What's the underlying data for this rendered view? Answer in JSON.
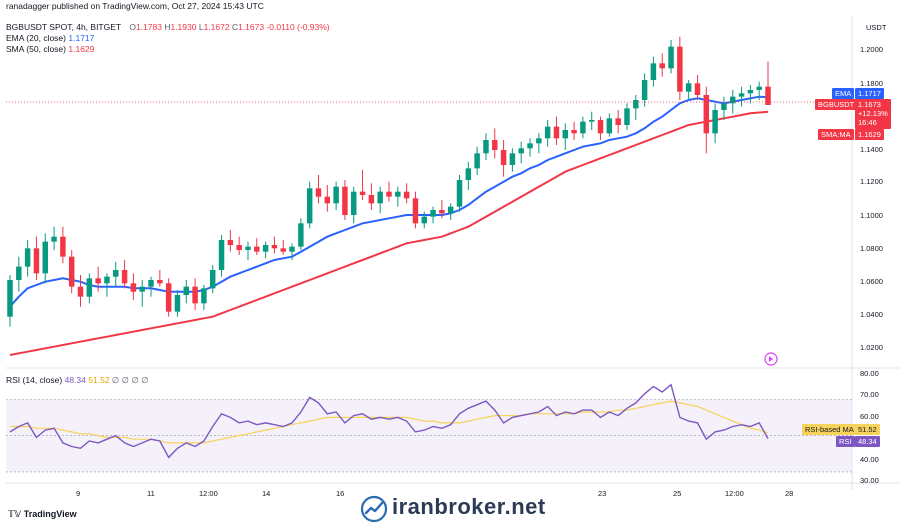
{
  "header": {
    "published_by": "ranadagger published on TradingView.com, Oct 27, 2024 15:43 UTC",
    "symbol": "BGBUSDT SPOT, 4h, BITGET",
    "ohlc": {
      "o_label": "O",
      "o": "1.1783",
      "h_label": "H",
      "h": "1.1930",
      "l_label": "L",
      "l": "1.1672",
      "c_label": "C",
      "c": "1.1673",
      "change": "-0.0110 (-0.93%)"
    },
    "ema_label": "EMA (20, close)",
    "ema_value": "1.1717",
    "sma_label": "SMA (50, close)",
    "sma_value": "1.1629"
  },
  "price_scale": {
    "currency": "USDT",
    "ticks": [
      "1.2000",
      "1.1800",
      "1.1400",
      "1.1200",
      "1.1000",
      "1.0800",
      "1.0600",
      "1.0400",
      "1.0200"
    ],
    "tag_ema": {
      "name": "EMA",
      "value": "1.1717"
    },
    "tag_price": {
      "name": "BGBUSDT",
      "value": "1.1673",
      "extra1": "+12.13%",
      "extra2": "16:46"
    },
    "tag_sma": {
      "name": "SMA:MA",
      "value": "1.1629"
    }
  },
  "rsi_panel": {
    "label": "RSI (14, close)",
    "rsi_value": "48.34",
    "ma_value": "51.52",
    "zeros": "∅ ∅ ∅ ∅",
    "ticks": [
      "80.00",
      "70.00",
      "60.00",
      "50.00",
      "40.00",
      "30.00"
    ],
    "tag_ma": {
      "name": "RSI-based MA",
      "value": "51.52"
    },
    "tag_rsi": {
      "name": "RSI",
      "value": "48.34"
    }
  },
  "time_axis": [
    "9",
    "11",
    "12:00",
    "14",
    "16",
    "23",
    "25",
    "12:00",
    "28"
  ],
  "footer": {
    "logo": "TradingView",
    "brand": "iranbroker.net"
  },
  "colors": {
    "up": "#089981",
    "down": "#f23645",
    "ema": "#2962ff",
    "sma": "#f23645",
    "rsi": "#7e57c2",
    "rsi_ma": "#f7d35b",
    "band": "#ede7f6"
  },
  "chart_data": {
    "type": "candlestick",
    "symbol": "BGBUSDT",
    "interval": "4h",
    "y_range": [
      1.01,
      1.21
    ],
    "candles": [
      [
        1.04,
        1.065,
        1.034,
        1.062
      ],
      [
        1.062,
        1.076,
        1.055,
        1.07
      ],
      [
        1.07,
        1.086,
        1.064,
        1.081
      ],
      [
        1.081,
        1.088,
        1.062,
        1.066
      ],
      [
        1.066,
        1.09,
        1.06,
        1.085
      ],
      [
        1.085,
        1.094,
        1.08,
        1.088
      ],
      [
        1.088,
        1.094,
        1.072,
        1.076
      ],
      [
        1.076,
        1.08,
        1.054,
        1.058
      ],
      [
        1.058,
        1.065,
        1.046,
        1.052
      ],
      [
        1.052,
        1.066,
        1.048,
        1.063
      ],
      [
        1.063,
        1.07,
        1.055,
        1.06
      ],
      [
        1.06,
        1.066,
        1.052,
        1.064
      ],
      [
        1.064,
        1.073,
        1.058,
        1.068
      ],
      [
        1.068,
        1.074,
        1.057,
        1.06
      ],
      [
        1.06,
        1.066,
        1.05,
        1.055
      ],
      [
        1.055,
        1.062,
        1.046,
        1.058
      ],
      [
        1.058,
        1.064,
        1.052,
        1.062
      ],
      [
        1.062,
        1.068,
        1.058,
        1.06
      ],
      [
        1.06,
        1.063,
        1.04,
        1.043
      ],
      [
        1.043,
        1.056,
        1.04,
        1.053
      ],
      [
        1.053,
        1.062,
        1.048,
        1.058
      ],
      [
        1.058,
        1.063,
        1.044,
        1.048
      ],
      [
        1.048,
        1.059,
        1.044,
        1.057
      ],
      [
        1.057,
        1.071,
        1.054,
        1.068
      ],
      [
        1.068,
        1.089,
        1.064,
        1.086
      ],
      [
        1.086,
        1.092,
        1.079,
        1.083
      ],
      [
        1.083,
        1.088,
        1.077,
        1.08
      ],
      [
        1.08,
        1.085,
        1.074,
        1.082
      ],
      [
        1.082,
        1.087,
        1.077,
        1.079
      ],
      [
        1.079,
        1.085,
        1.075,
        1.083
      ],
      [
        1.083,
        1.088,
        1.078,
        1.081
      ],
      [
        1.081,
        1.086,
        1.077,
        1.079
      ],
      [
        1.079,
        1.084,
        1.074,
        1.082
      ],
      [
        1.082,
        1.099,
        1.08,
        1.096
      ],
      [
        1.096,
        1.121,
        1.093,
        1.117
      ],
      [
        1.117,
        1.125,
        1.108,
        1.112
      ],
      [
        1.112,
        1.119,
        1.103,
        1.108
      ],
      [
        1.108,
        1.121,
        1.104,
        1.118
      ],
      [
        1.118,
        1.122,
        1.098,
        1.101
      ],
      [
        1.101,
        1.118,
        1.096,
        1.115
      ],
      [
        1.115,
        1.128,
        1.11,
        1.113
      ],
      [
        1.113,
        1.12,
        1.104,
        1.108
      ],
      [
        1.108,
        1.118,
        1.102,
        1.115
      ],
      [
        1.115,
        1.121,
        1.109,
        1.112
      ],
      [
        1.112,
        1.118,
        1.106,
        1.115
      ],
      [
        1.115,
        1.12,
        1.108,
        1.111
      ],
      [
        1.111,
        1.115,
        1.093,
        1.096
      ],
      [
        1.096,
        1.103,
        1.093,
        1.1
      ],
      [
        1.1,
        1.106,
        1.096,
        1.104
      ],
      [
        1.104,
        1.11,
        1.099,
        1.102
      ],
      [
        1.102,
        1.108,
        1.098,
        1.106
      ],
      [
        1.106,
        1.125,
        1.103,
        1.122
      ],
      [
        1.122,
        1.133,
        1.116,
        1.129
      ],
      [
        1.129,
        1.142,
        1.125,
        1.138
      ],
      [
        1.138,
        1.15,
        1.134,
        1.146
      ],
      [
        1.146,
        1.153,
        1.135,
        1.14
      ],
      [
        1.14,
        1.146,
        1.124,
        1.131
      ],
      [
        1.131,
        1.141,
        1.127,
        1.138
      ],
      [
        1.138,
        1.145,
        1.132,
        1.141
      ],
      [
        1.141,
        1.147,
        1.136,
        1.144
      ],
      [
        1.144,
        1.15,
        1.138,
        1.147
      ],
      [
        1.147,
        1.158,
        1.142,
        1.154
      ],
      [
        1.154,
        1.16,
        1.143,
        1.147
      ],
      [
        1.147,
        1.156,
        1.14,
        1.152
      ],
      [
        1.152,
        1.157,
        1.146,
        1.15
      ],
      [
        1.15,
        1.16,
        1.147,
        1.157
      ],
      [
        1.157,
        1.163,
        1.152,
        1.158
      ],
      [
        1.158,
        1.16,
        1.146,
        1.15
      ],
      [
        1.15,
        1.162,
        1.148,
        1.159
      ],
      [
        1.159,
        1.164,
        1.15,
        1.155
      ],
      [
        1.155,
        1.168,
        1.152,
        1.165
      ],
      [
        1.165,
        1.173,
        1.158,
        1.17
      ],
      [
        1.17,
        1.186,
        1.166,
        1.182
      ],
      [
        1.182,
        1.196,
        1.178,
        1.192
      ],
      [
        1.192,
        1.198,
        1.184,
        1.189
      ],
      [
        1.189,
        1.206,
        1.186,
        1.202
      ],
      [
        1.202,
        1.208,
        1.17,
        1.175
      ],
      [
        1.175,
        1.182,
        1.17,
        1.18
      ],
      [
        1.18,
        1.185,
        1.17,
        1.173
      ],
      [
        1.173,
        1.178,
        1.138,
        1.15
      ],
      [
        1.15,
        1.168,
        1.144,
        1.164
      ],
      [
        1.164,
        1.172,
        1.158,
        1.168
      ],
      [
        1.168,
        1.176,
        1.162,
        1.172
      ],
      [
        1.172,
        1.178,
        1.166,
        1.174
      ],
      [
        1.174,
        1.179,
        1.168,
        1.176
      ],
      [
        1.176,
        1.181,
        1.17,
        1.178
      ],
      [
        1.178,
        1.193,
        1.167,
        1.167
      ]
    ],
    "ema20": [
      1.046,
      1.052,
      1.057,
      1.059,
      1.061,
      1.062,
      1.063,
      1.062,
      1.061,
      1.059,
      1.058,
      1.058,
      1.058,
      1.058,
      1.057,
      1.057,
      1.057,
      1.056,
      1.055,
      1.055,
      1.055,
      1.055,
      1.056,
      1.058,
      1.061,
      1.064,
      1.066,
      1.068,
      1.07,
      1.072,
      1.074,
      1.075,
      1.076,
      1.079,
      1.082,
      1.085,
      1.088,
      1.09,
      1.092,
      1.094,
      1.096,
      1.097,
      1.098,
      1.099,
      1.1,
      1.101,
      1.101,
      1.101,
      1.101,
      1.101,
      1.102,
      1.104,
      1.107,
      1.111,
      1.115,
      1.118,
      1.121,
      1.124,
      1.126,
      1.129,
      1.131,
      1.134,
      1.136,
      1.138,
      1.14,
      1.142,
      1.143,
      1.144,
      1.146,
      1.147,
      1.148,
      1.15,
      1.153,
      1.157,
      1.16,
      1.164,
      1.168,
      1.17,
      1.171,
      1.17,
      1.169,
      1.168,
      1.169,
      1.17,
      1.171,
      1.172,
      1.1717
    ],
    "sma50": [
      1.017,
      1.018,
      1.019,
      1.02,
      1.021,
      1.022,
      1.023,
      1.024,
      1.025,
      1.026,
      1.027,
      1.028,
      1.029,
      1.03,
      1.031,
      1.032,
      1.033,
      1.034,
      1.035,
      1.036,
      1.037,
      1.038,
      1.039,
      1.04,
      1.042,
      1.044,
      1.046,
      1.048,
      1.05,
      1.052,
      1.054,
      1.056,
      1.058,
      1.06,
      1.062,
      1.064,
      1.066,
      1.068,
      1.07,
      1.072,
      1.074,
      1.076,
      1.078,
      1.08,
      1.082,
      1.084,
      1.085,
      1.086,
      1.087,
      1.088,
      1.09,
      1.092,
      1.094,
      1.097,
      1.1,
      1.103,
      1.106,
      1.109,
      1.112,
      1.115,
      1.118,
      1.121,
      1.124,
      1.127,
      1.129,
      1.131,
      1.133,
      1.135,
      1.137,
      1.139,
      1.141,
      1.143,
      1.145,
      1.147,
      1.149,
      1.151,
      1.153,
      1.155,
      1.156,
      1.157,
      1.158,
      1.159,
      1.16,
      1.161,
      1.162,
      1.1625,
      1.1629
    ],
    "rsi": [
      52,
      55,
      57,
      49,
      53,
      54,
      46,
      44,
      43,
      47,
      46,
      48,
      50,
      46,
      44,
      46,
      48,
      47,
      38,
      43,
      46,
      44,
      47,
      55,
      62,
      60,
      57,
      58,
      56,
      57,
      56,
      55,
      57,
      63,
      71,
      68,
      62,
      63,
      57,
      61,
      62,
      59,
      60,
      59,
      60,
      58,
      52,
      53,
      55,
      54,
      56,
      62,
      65,
      67,
      69,
      64,
      57,
      60,
      61,
      62,
      63,
      66,
      61,
      63,
      62,
      64,
      64,
      60,
      63,
      61,
      65,
      68,
      73,
      77,
      74,
      78,
      60,
      58,
      57,
      48,
      52,
      53,
      55,
      56,
      55,
      57,
      48.34
    ],
    "rsi_ma": [
      55,
      55,
      55,
      54,
      54,
      54,
      53,
      52,
      51,
      51,
      50,
      49,
      49,
      49,
      48,
      48,
      48,
      47,
      46,
      46,
      46,
      46,
      46,
      47,
      48,
      49,
      50,
      51,
      52,
      53,
      54,
      55,
      56,
      57,
      58,
      59,
      60,
      60,
      60,
      60,
      60,
      60,
      60,
      60,
      60,
      60,
      59,
      58,
      58,
      57,
      57,
      57,
      58,
      59,
      60,
      61,
      61,
      61,
      61,
      62,
      62,
      62,
      62,
      62,
      62,
      63,
      63,
      63,
      63,
      64,
      64,
      65,
      66,
      67,
      68,
      69,
      68,
      67,
      66,
      64,
      62,
      60,
      58,
      56,
      54,
      53,
      51.52
    ],
    "rsi_range": [
      25,
      85
    ],
    "rsi_levels": [
      70,
      50,
      30
    ]
  }
}
